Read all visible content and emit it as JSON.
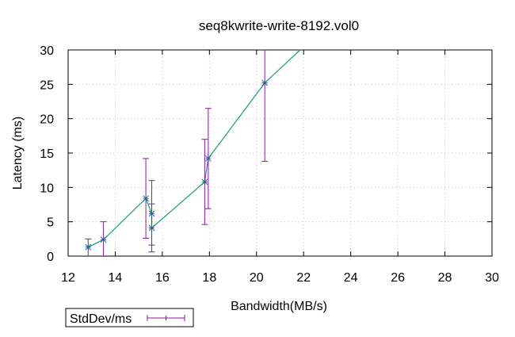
{
  "chart_data": {
    "type": "scatter",
    "title": "seq8kwrite-write-8192.vol0",
    "xlabel": "Bandwidth(MB/s)",
    "ylabel": "Latency (ms)",
    "xlim": [
      12,
      30
    ],
    "ylim": [
      0,
      30
    ],
    "xticks": [
      12,
      14,
      16,
      18,
      20,
      22,
      24,
      26,
      28,
      30
    ],
    "yticks": [
      0,
      5,
      10,
      15,
      20,
      25,
      30
    ],
    "grid": true,
    "legend_position": "bottom-left",
    "colors": {
      "line": "#1b9e77",
      "errorbar": "#8a1a9e",
      "marker": "#2f5f8a"
    },
    "series": [
      {
        "name": "StdDev/ms",
        "x": [
          12.85,
          13.5,
          15.3,
          15.55,
          15.55,
          17.8,
          17.95,
          20.35,
          21.85
        ],
        "y": [
          1.3,
          2.4,
          8.4,
          6.2,
          4.1,
          10.8,
          14.2,
          25.2,
          30
        ],
        "ylow": [
          0,
          0,
          2.6,
          1.6,
          0.6,
          4.6,
          6.9,
          13.8,
          null
        ],
        "yhigh": [
          2.5,
          5.0,
          14.2,
          11.0,
          7.6,
          17.0,
          21.5,
          30.0,
          null
        ]
      }
    ]
  }
}
